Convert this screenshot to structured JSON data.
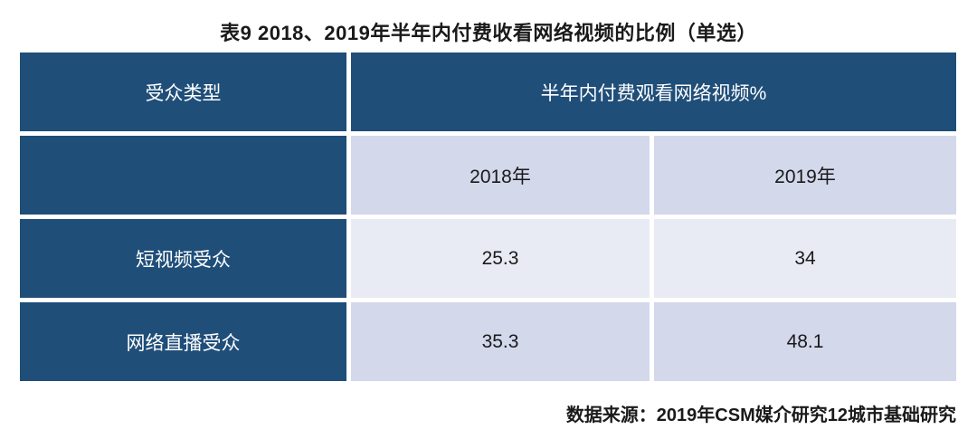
{
  "title": "表9 2018、2019年半年内付费收看网络视频的比例（单选）",
  "table": {
    "header": {
      "audience_type": "受众类型",
      "paid_viewing_group": "半年内付费观看网络视频%"
    },
    "year_row": {
      "y2018": "2018年",
      "y2019": "2019年"
    },
    "rows": [
      {
        "label": "短视频受众",
        "v2018": "25.3",
        "v2019": "34"
      },
      {
        "label": "网络直播受众",
        "v2018": "35.3",
        "v2019": "48.1"
      }
    ]
  },
  "footer": {
    "source": "数据来源：2019年CSM媒介研究12城市基础研究"
  },
  "colors": {
    "header_bg": "#1F4E79",
    "row_alt_bg": "#D3D8EB",
    "row_light_bg": "#E9EBF4",
    "header_text": "#FFFFFF",
    "body_text": "#1A1A1A",
    "gap": "#FFFFFF"
  },
  "chart_data": {
    "type": "table",
    "title": "表9 2018、2019年半年内付费收看网络视频的比例（单选）",
    "column_group_header": "半年内付费观看网络视频%",
    "columns": [
      "受众类型",
      "2018年",
      "2019年"
    ],
    "rows": [
      {
        "label": "短视频受众",
        "values": [
          25.3,
          34
        ]
      },
      {
        "label": "网络直播受众",
        "values": [
          35.3,
          48.1
        ]
      }
    ],
    "source": "数据来源：2019年CSM媒介研究12城市基础研究"
  }
}
